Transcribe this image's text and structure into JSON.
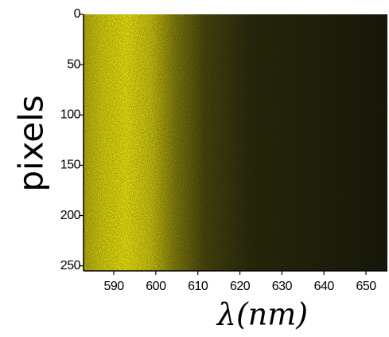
{
  "chart_data": {
    "type": "image",
    "xlabel": "λ(nm)",
    "ylabel": "pixels",
    "xlim": [
      582.8,
      655.1
    ],
    "xticks": [
      590,
      600,
      610,
      620,
      630,
      640,
      650
    ],
    "ylim": [
      0,
      255
    ],
    "yticks": [
      0,
      50,
      100,
      150,
      200,
      250
    ],
    "invert_y": true,
    "color": "#f2ea10",
    "background_color": "#1c1c0c"
  }
}
